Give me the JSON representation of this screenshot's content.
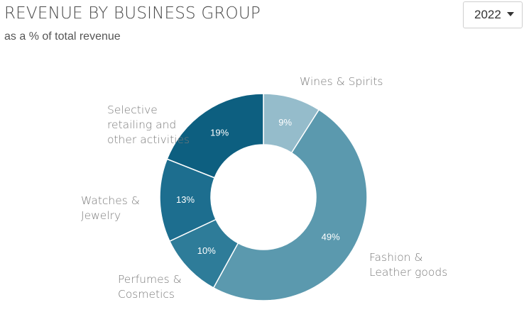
{
  "header": {
    "title": "REVENUE BY BUSINESS GROUP",
    "subtitle": "as a % of total revenue"
  },
  "year_select": {
    "selected": "2022"
  },
  "chart_data": {
    "type": "pie",
    "donut": true,
    "title": "REVENUE BY BUSINESS GROUP",
    "subtitle": "as a % of total revenue",
    "categories": [
      "Wines & Spirits",
      "Fashion & Leather goods",
      "Perfumes & Cosmetics",
      "Watches & Jewelry",
      "Selective retailing and other activities"
    ],
    "values": [
      9,
      49,
      10,
      13,
      19
    ],
    "value_labels": [
      "9%",
      "49%",
      "10%",
      "13%",
      "19%"
    ],
    "colors": [
      "#95bccb",
      "#5b99ae",
      "#2e7c99",
      "#1d6e8f",
      "#0d5f80"
    ],
    "category_lines": [
      [
        "Wines & Spirits"
      ],
      [
        "Fashion &",
        "Leather goods"
      ],
      [
        "Perfumes &",
        "Cosmetics"
      ],
      [
        "Watches &",
        "Jewelry"
      ],
      [
        "Selective",
        "retailing and",
        "other activities"
      ]
    ],
    "legend": "none",
    "grid": false
  }
}
